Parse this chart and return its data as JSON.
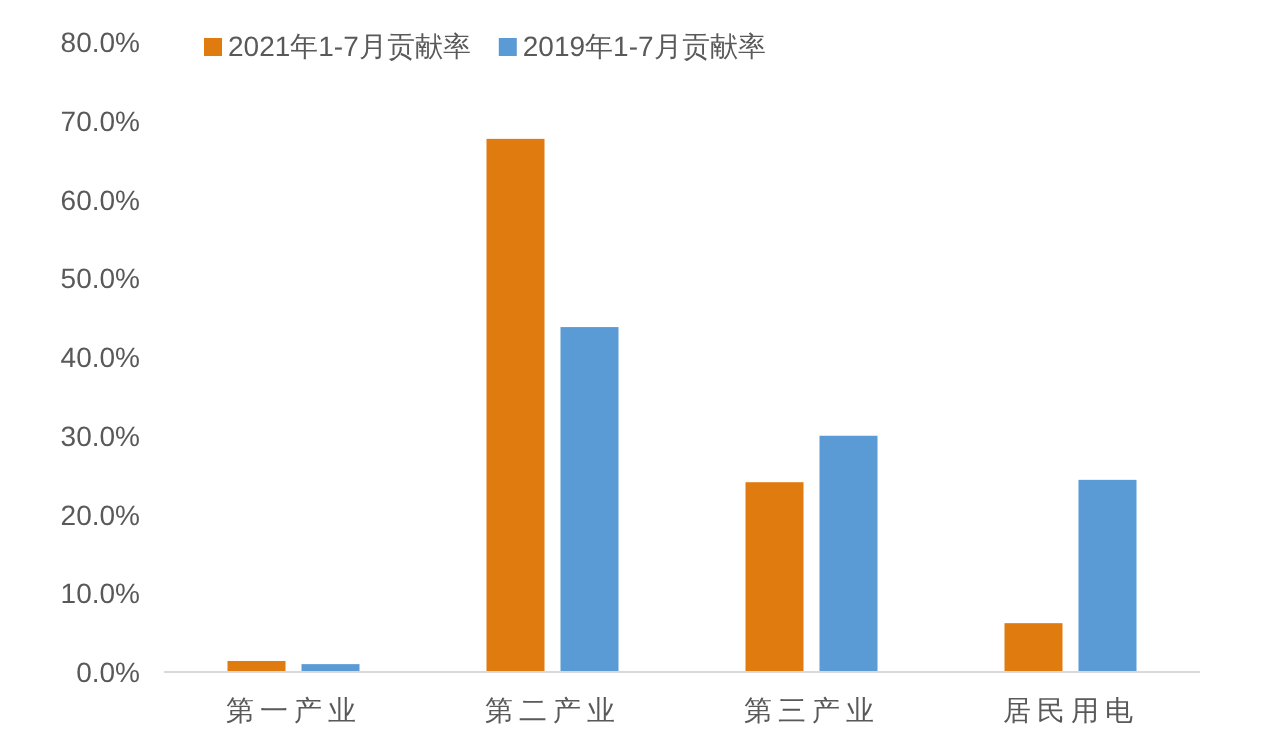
{
  "chart_data": {
    "type": "bar",
    "categories": [
      "第一产业",
      "第二产业",
      "第三产业",
      "居民用电"
    ],
    "series": [
      {
        "name": "2021年1-7月贡献率",
        "color": "#e07b10",
        "values": [
          1.4,
          67.7,
          24.1,
          6.2
        ]
      },
      {
        "name": "2019年1-7月贡献率",
        "color": "#5b9bd5",
        "values": [
          1.0,
          43.8,
          30.0,
          24.4
        ]
      }
    ],
    "ylim": [
      0,
      80
    ],
    "yticks": [
      {
        "value": 0,
        "label": "0.0%"
      },
      {
        "value": 10,
        "label": "10.0%"
      },
      {
        "value": 20,
        "label": "20.0%"
      },
      {
        "value": 30,
        "label": "30.0%"
      },
      {
        "value": 40,
        "label": "40.0%"
      },
      {
        "value": 50,
        "label": "50.0%"
      },
      {
        "value": 60,
        "label": "60.0%"
      },
      {
        "value": 70,
        "label": "70.0%"
      },
      {
        "value": 80,
        "label": "80.0%"
      }
    ],
    "grid": false,
    "legend": "top left"
  }
}
